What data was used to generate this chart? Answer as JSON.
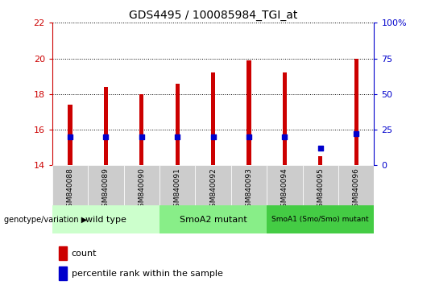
{
  "title": "GDS4495 / 100085984_TGI_at",
  "samples": [
    "GSM840088",
    "GSM840089",
    "GSM840090",
    "GSM840091",
    "GSM840092",
    "GSM840093",
    "GSM840094",
    "GSM840095",
    "GSM840096"
  ],
  "bar_tops": [
    17.4,
    18.4,
    18.0,
    18.6,
    19.2,
    19.9,
    19.2,
    14.5,
    20.0
  ],
  "bar_bottom": 14.0,
  "blue_percentiles": [
    20,
    20,
    20,
    20,
    20,
    20,
    20,
    12,
    22
  ],
  "ylim_left": [
    14,
    22
  ],
  "ylim_right": [
    0,
    100
  ],
  "yticks_left": [
    14,
    16,
    18,
    20,
    22
  ],
  "yticks_right": [
    0,
    25,
    50,
    75,
    100
  ],
  "bar_color": "#cc0000",
  "blue_color": "#0000cc",
  "bar_width": 0.12,
  "groups": [
    {
      "label": "wild type",
      "indices": [
        0,
        1,
        2
      ],
      "color": "#ccffcc"
    },
    {
      "label": "SmoA2 mutant",
      "indices": [
        3,
        4,
        5
      ],
      "color": "#88ee88"
    },
    {
      "label": "SmoA1 (Smo/Smo) mutant",
      "indices": [
        6,
        7,
        8
      ],
      "color": "#44cc44"
    }
  ],
  "left_tick_color": "#cc0000",
  "right_tick_color": "#0000cc",
  "grid_color": "#000000",
  "bg_color": "#ffffff",
  "label_area_color": "#cccccc",
  "genotype_label": "genotype/variation",
  "legend_count": "count",
  "legend_percentile": "percentile rank within the sample",
  "group_colors": [
    "#ccffcc",
    "#88ee88",
    "#44cc44"
  ]
}
